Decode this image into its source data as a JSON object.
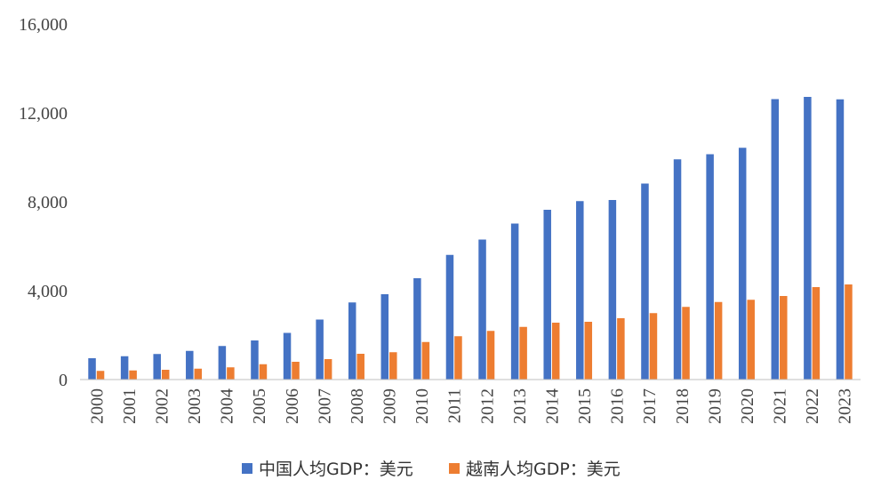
{
  "chart_data": {
    "type": "bar",
    "categories": [
      "2000",
      "2001",
      "2002",
      "2003",
      "2004",
      "2005",
      "2006",
      "2007",
      "2008",
      "2009",
      "2010",
      "2011",
      "2012",
      "2013",
      "2014",
      "2015",
      "2016",
      "2017",
      "2018",
      "2019",
      "2020",
      "2021",
      "2022",
      "2023"
    ],
    "series": [
      {
        "name": "中国人均GDP：美元",
        "color": "#4472C4",
        "values": [
          960,
          1050,
          1150,
          1290,
          1510,
          1760,
          2100,
          2700,
          3470,
          3840,
          4560,
          5610,
          6300,
          7020,
          7640,
          8030,
          8080,
          8820,
          9910,
          10140,
          10430,
          12620,
          12720,
          12610
        ]
      },
      {
        "name": "越南人均GDP：美元",
        "color": "#ED7D31",
        "values": [
          390,
          410,
          440,
          490,
          550,
          690,
          800,
          920,
          1160,
          1230,
          1690,
          1950,
          2190,
          2370,
          2560,
          2600,
          2760,
          2990,
          3270,
          3490,
          3590,
          3760,
          4160,
          4280
        ]
      }
    ],
    "ylim": [
      0,
      16000
    ],
    "yticks": [
      0,
      4000,
      8000,
      12000,
      16000
    ],
    "ytick_labels": [
      "0",
      "4,000",
      "8,000",
      "12,000",
      "16,000"
    ],
    "grid": false,
    "legend_position": "bottom-center",
    "title": "",
    "xlabel": "",
    "ylabel": ""
  }
}
